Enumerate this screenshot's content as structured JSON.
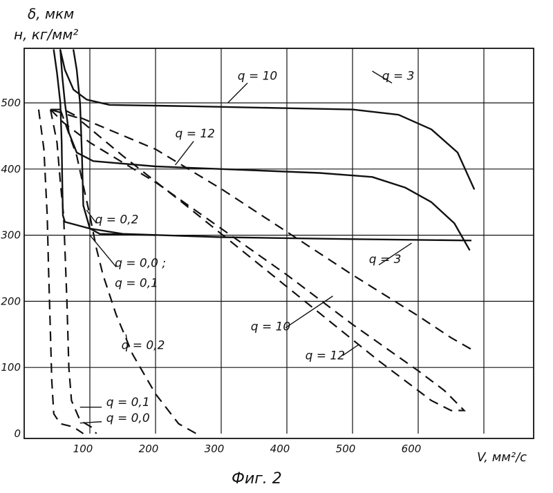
{
  "chart_data": {
    "type": "line",
    "title": "",
    "ylabel_lines": [
      "δ, мкм",
      "н, кг/мм²"
    ],
    "xlabel": "V, мм²/с",
    "caption": "Фиг. 2",
    "xlim": [
      0,
      700
    ],
    "ylim": [
      0,
      580
    ],
    "x_ticks": [
      100,
      200,
      300,
      400,
      500,
      600
    ],
    "y_ticks": [
      0,
      100,
      200,
      300,
      400,
      500
    ],
    "grid": true,
    "series": [
      {
        "style": "solid",
        "points": [
          [
            55,
            580
          ],
          [
            62,
            550
          ],
          [
            75,
            520
          ],
          [
            95,
            505
          ],
          [
            130,
            497
          ],
          [
            250,
            495
          ],
          [
            400,
            492
          ],
          [
            500,
            490
          ],
          [
            570,
            482
          ],
          [
            620,
            460
          ],
          [
            660,
            425
          ],
          [
            685,
            370
          ]
        ]
      },
      {
        "style": "solid",
        "points": [
          [
            55,
            580
          ],
          [
            58,
            540
          ],
          [
            62,
            500
          ],
          [
            68,
            455
          ],
          [
            80,
            425
          ],
          [
            105,
            412
          ],
          [
            200,
            404
          ],
          [
            350,
            398
          ],
          [
            450,
            394
          ],
          [
            530,
            388
          ],
          [
            580,
            372
          ],
          [
            620,
            350
          ],
          [
            655,
            318
          ],
          [
            678,
            278
          ]
        ]
      },
      {
        "style": "solid",
        "points": [
          [
            45,
            580
          ],
          [
            50,
            545
          ],
          [
            55,
            500
          ],
          [
            57,
            440
          ],
          [
            58,
            380
          ],
          [
            59,
            330
          ],
          [
            62,
            320
          ],
          [
            100,
            310
          ],
          [
            150,
            302
          ],
          [
            300,
            297
          ],
          [
            500,
            294
          ],
          [
            680,
            292
          ]
        ]
      },
      {
        "style": "solid",
        "points": [
          [
            75,
            580
          ],
          [
            80,
            550
          ],
          [
            85,
            500
          ],
          [
            88,
            420
          ],
          [
            90,
            345
          ],
          [
            100,
            310
          ],
          [
            115,
            302
          ],
          [
            200,
            300
          ]
        ]
      },
      {
        "style": "dash",
        "points": [
          [
            40,
            490
          ],
          [
            60,
            490
          ],
          [
            80,
            480
          ],
          [
            200,
            430
          ],
          [
            300,
            370
          ],
          [
            400,
            305
          ],
          [
            500,
            240
          ],
          [
            600,
            178
          ],
          [
            650,
            145
          ],
          [
            680,
            128
          ]
        ]
      },
      {
        "style": "dash",
        "points": [
          [
            40,
            490
          ],
          [
            60,
            470
          ],
          [
            100,
            440
          ],
          [
            200,
            380
          ],
          [
            300,
            310
          ],
          [
            400,
            240
          ],
          [
            500,
            165
          ],
          [
            600,
            95
          ],
          [
            640,
            65
          ],
          [
            670,
            35
          ],
          [
            650,
            35
          ],
          [
            620,
            50
          ],
          [
            540,
            110
          ],
          [
            440,
            190
          ],
          [
            340,
            270
          ],
          [
            240,
            350
          ],
          [
            150,
            420
          ],
          [
            80,
            478
          ],
          [
            40,
            490
          ]
        ]
      },
      {
        "style": "dash",
        "points": [
          [
            55,
            490
          ],
          [
            80,
            420
          ],
          [
            100,
            330
          ],
          [
            110,
            280
          ],
          [
            120,
            240
          ],
          [
            140,
            180
          ],
          [
            165,
            120
          ],
          [
            200,
            60
          ],
          [
            235,
            15
          ],
          [
            262,
            0
          ]
        ]
      },
      {
        "style": "dash",
        "points": [
          [
            40,
            490
          ],
          [
            50,
            440
          ],
          [
            55,
            380
          ],
          [
            60,
            330
          ],
          [
            62,
            280
          ],
          [
            65,
            200
          ],
          [
            68,
            100
          ],
          [
            72,
            50
          ],
          [
            85,
            20
          ],
          [
            102,
            10
          ],
          [
            110,
            0
          ]
        ]
      },
      {
        "style": "dash",
        "points": [
          [
            22,
            490
          ],
          [
            30,
            430
          ],
          [
            35,
            330
          ],
          [
            37,
            250
          ],
          [
            40,
            150
          ],
          [
            42,
            80
          ],
          [
            45,
            30
          ],
          [
            55,
            15
          ],
          [
            75,
            10
          ],
          [
            90,
            0
          ]
        ]
      }
    ],
    "annotations": [
      {
        "text": "q = 10",
        "x": 325,
        "y": 535
      },
      {
        "text": "q = 3",
        "x": 545,
        "y": 535
      },
      {
        "text": "q = 12",
        "x": 230,
        "y": 448
      },
      {
        "text": "q = 0,2",
        "x": 108,
        "y": 318
      },
      {
        "text": "q = 0,0 ;",
        "x": 138,
        "y": 252
      },
      {
        "text": "q = 0,1",
        "x": 138,
        "y": 222
      },
      {
        "text": "q = 3",
        "x": 525,
        "y": 258
      },
      {
        "text": "q = 10",
        "x": 345,
        "y": 156
      },
      {
        "text": "q = 12",
        "x": 428,
        "y": 112
      },
      {
        "text": "q = 0,2",
        "x": 148,
        "y": 128
      },
      {
        "text": "q = 0,1",
        "x": 125,
        "y": 42
      },
      {
        "text": "q = 0,0",
        "x": 125,
        "y": 18
      }
    ]
  }
}
